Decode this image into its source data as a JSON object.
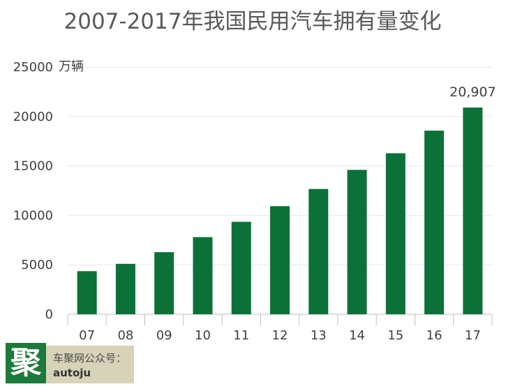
{
  "chart_data": {
    "type": "bar",
    "title": "2007-2017年我国民用汽车拥有量变化",
    "ylabel": "万辆",
    "categories": [
      "07",
      "08",
      "09",
      "10",
      "11",
      "12",
      "13",
      "14",
      "15",
      "16",
      "17"
    ],
    "values": [
      4358,
      5100,
      6280,
      7800,
      9350,
      10930,
      12670,
      14600,
      16280,
      18570,
      20907
    ],
    "data_labels": [
      {
        "category": "17",
        "text": "20,907"
      }
    ],
    "ylim": [
      0,
      25000
    ],
    "yticks": [
      "0",
      "5000",
      "10000",
      "15000",
      "20000",
      "25000"
    ],
    "grid": true,
    "legend": "none",
    "colors": {
      "bar": "#0b7139",
      "grid": "#e7e7e7",
      "axis": "#bfbfbf"
    }
  },
  "watermark": {
    "logo_char": "聚",
    "line1": "车聚网公众号：",
    "line2": "autoju"
  }
}
